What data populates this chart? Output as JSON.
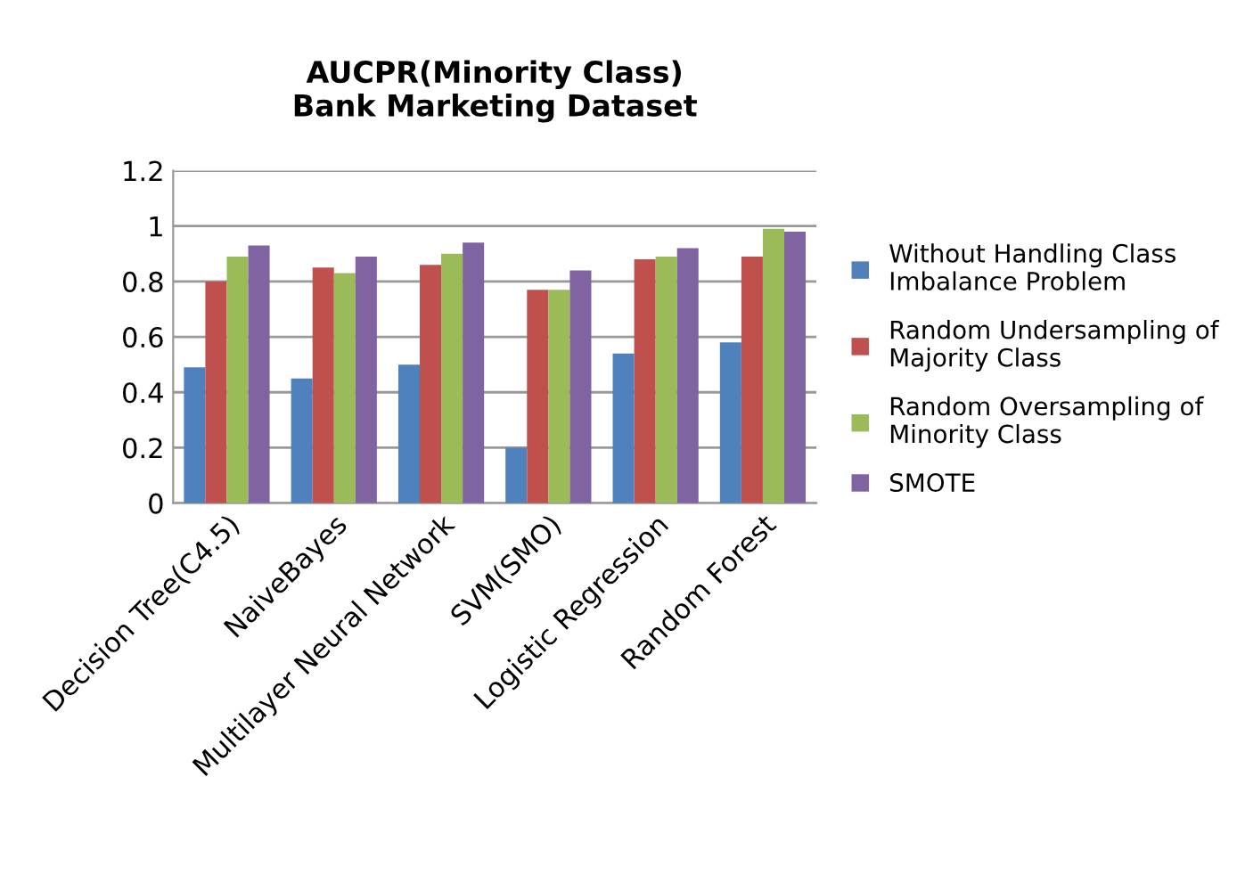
{
  "chart_data": {
    "type": "bar",
    "title": "AUCPR(Minority Class)\nBank Marketing Dataset",
    "categories": [
      "Decision Tree(C4.5)",
      "NaiveBayes",
      "Multilayer Neural Network",
      "SVM(SMO)",
      "Logistic Regression",
      "Random Forest"
    ],
    "series": [
      {
        "name": "Without Handling Class\nImbalance Problem",
        "color": "#4f81bd",
        "values": [
          0.49,
          0.45,
          0.5,
          0.2,
          0.54,
          0.58
        ]
      },
      {
        "name": "Random Undersampling of\nMajority Class",
        "color": "#c0504d",
        "values": [
          0.8,
          0.85,
          0.86,
          0.77,
          0.88,
          0.89
        ]
      },
      {
        "name": "Random Oversampling of\nMinority Class",
        "color": "#9bbb59",
        "values": [
          0.89,
          0.83,
          0.9,
          0.77,
          0.89,
          0.99
        ]
      },
      {
        "name": "SMOTE",
        "color": "#8064a2",
        "values": [
          0.93,
          0.89,
          0.94,
          0.84,
          0.92,
          0.98
        ]
      }
    ],
    "ylim": [
      0,
      1.2
    ],
    "yticks": [
      0,
      {
        "value": 0.2,
        "label": "0.2"
      },
      {
        "value": 0.4,
        "label": "0.4"
      },
      {
        "value": 0.6,
        "label": "0.6"
      },
      {
        "value": 0.8,
        "label": "0.8"
      },
      1,
      {
        "value": 1.2,
        "label": "1.2"
      }
    ],
    "grid": "y",
    "legend": "right"
  }
}
